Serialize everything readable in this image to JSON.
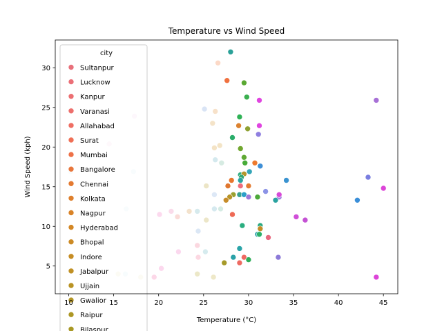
{
  "chart_data": {
    "type": "scatter",
    "title": "Temperature vs Wind Speed",
    "xlabel": "Temperature (°C)",
    "ylabel": "Wind Speed (kph)",
    "xlim": [
      8.5,
      46.6
    ],
    "ylim": [
      1.5,
      33.5
    ],
    "xticks": [
      10,
      15,
      20,
      25,
      30,
      35,
      40,
      45
    ],
    "yticks": [
      5,
      10,
      15,
      20,
      25,
      30
    ],
    "grid": false,
    "legend": {
      "title": "city",
      "placement": "upper-left",
      "entries": [
        {
          "name": "Sultanpur",
          "color": "#e8707b"
        },
        {
          "name": "Lucknow",
          "color": "#eb6f77"
        },
        {
          "name": "Kanpur",
          "color": "#ec6f72"
        },
        {
          "name": "Varanasi",
          "color": "#ed6f6c"
        },
        {
          "name": "Allahabad",
          "color": "#ef6e63"
        },
        {
          "name": "Surat",
          "color": "#f06f55"
        },
        {
          "name": "Mumbai",
          "color": "#ee7147"
        },
        {
          "name": "Bangalore",
          "color": "#e8763b"
        },
        {
          "name": "Chennai",
          "color": "#e47a31"
        },
        {
          "name": "Kolkata",
          "color": "#de7f2c"
        },
        {
          "name": "Nagpur",
          "color": "#d98327"
        },
        {
          "name": "Hyderabad",
          "color": "#d38725"
        },
        {
          "name": "Bhopal",
          "color": "#cc8a24"
        },
        {
          "name": "Indore",
          "color": "#c68d24"
        },
        {
          "name": "Jabalpur",
          "color": "#c09024"
        },
        {
          "name": "Ujjain",
          "color": "#b99324"
        },
        {
          "name": "Gwalior",
          "color": "#b39524"
        },
        {
          "name": "Raipur",
          "color": "#ad9724"
        },
        {
          "name": "Bilaspur",
          "color": "#a89824"
        }
      ]
    },
    "points": [
      {
        "x": 28.0,
        "y": 32.0,
        "color": "#2aa198"
      },
      {
        "x": 26.6,
        "y": 30.6,
        "color": "#fcd9c7"
      },
      {
        "x": 27.6,
        "y": 28.4,
        "color": "#f0713f"
      },
      {
        "x": 29.5,
        "y": 28.1,
        "color": "#5aa832"
      },
      {
        "x": 29.8,
        "y": 26.3,
        "color": "#3aaf4f"
      },
      {
        "x": 31.2,
        "y": 25.9,
        "color": "#e045e0"
      },
      {
        "x": 44.2,
        "y": 25.9,
        "color": "#a770d6"
      },
      {
        "x": 25.1,
        "y": 24.8,
        "color": "#d9e4f5"
      },
      {
        "x": 26.3,
        "y": 24.5,
        "color": "#f7e1c9"
      },
      {
        "x": 17.3,
        "y": 23.9,
        "color": "#f6d8ef"
      },
      {
        "x": 29.0,
        "y": 23.8,
        "color": "#2fb256"
      },
      {
        "x": 26.0,
        "y": 23.0,
        "color": "#f4e3c8"
      },
      {
        "x": 28.9,
        "y": 22.7,
        "color": "#dc8230"
      },
      {
        "x": 31.2,
        "y": 22.7,
        "color": "#e045e0"
      },
      {
        "x": 29.9,
        "y": 22.3,
        "color": "#8ea132"
      },
      {
        "x": 31.1,
        "y": 21.6,
        "color": "#8f7fe0"
      },
      {
        "x": 28.2,
        "y": 21.2,
        "color": "#2aad6a"
      },
      {
        "x": 14.5,
        "y": 20.4,
        "color": "#f8d9ea"
      },
      {
        "x": 26.8,
        "y": 20.2,
        "color": "#f3e4c6"
      },
      {
        "x": 26.2,
        "y": 19.9,
        "color": "#f4e3c5"
      },
      {
        "x": 29.1,
        "y": 19.8,
        "color": "#71a72f"
      },
      {
        "x": 12.3,
        "y": 18.7,
        "color": "#d8ecf1"
      },
      {
        "x": 29.5,
        "y": 18.7,
        "color": "#60a935"
      },
      {
        "x": 26.3,
        "y": 18.4,
        "color": "#d4e9ee"
      },
      {
        "x": 27.0,
        "y": 18.0,
        "color": "#d6ebe2"
      },
      {
        "x": 29.6,
        "y": 18.0,
        "color": "#47ab38"
      },
      {
        "x": 30.7,
        "y": 18.0,
        "color": "#ee7a2d"
      },
      {
        "x": 31.3,
        "y": 17.6,
        "color": "#3f8fd6"
      },
      {
        "x": 10.2,
        "y": 16.9,
        "color": "#d9edf3"
      },
      {
        "x": 17.2,
        "y": 16.9,
        "color": "#dbeef4"
      },
      {
        "x": 30.1,
        "y": 16.9,
        "color": "#34a5b8"
      },
      {
        "x": 29.1,
        "y": 16.5,
        "color": "#2fae82"
      },
      {
        "x": 29.5,
        "y": 16.6,
        "color": "#b3962c"
      },
      {
        "x": 29.2,
        "y": 16.2,
        "color": "#33a876"
      },
      {
        "x": 43.3,
        "y": 16.2,
        "color": "#7a7ee0"
      },
      {
        "x": 28.1,
        "y": 15.8,
        "color": "#e8762e"
      },
      {
        "x": 34.2,
        "y": 15.8,
        "color": "#3a93d0"
      },
      {
        "x": 29.1,
        "y": 15.8,
        "color": "#2aa3a0"
      },
      {
        "x": 25.3,
        "y": 15.1,
        "color": "#ece5c6"
      },
      {
        "x": 27.7,
        "y": 15.1,
        "color": "#e0772f"
      },
      {
        "x": 29.1,
        "y": 15.1,
        "color": "#ee6d7d"
      },
      {
        "x": 30.0,
        "y": 15.1,
        "color": "#e47c33"
      },
      {
        "x": 45.0,
        "y": 14.8,
        "color": "#dc45d8"
      },
      {
        "x": 31.9,
        "y": 14.4,
        "color": "#8c93e6"
      },
      {
        "x": 28.3,
        "y": 14.0,
        "color": "#9aa02e"
      },
      {
        "x": 29.0,
        "y": 14.0,
        "color": "#3aa18e"
      },
      {
        "x": 29.5,
        "y": 14.0,
        "color": "#2b9fc8"
      },
      {
        "x": 26.2,
        "y": 14.0,
        "color": "#dde8f6"
      },
      {
        "x": 27.9,
        "y": 13.7,
        "color": "#b79429"
      },
      {
        "x": 30.0,
        "y": 13.7,
        "color": "#9e78d8"
      },
      {
        "x": 31.0,
        "y": 13.7,
        "color": "#4da93a"
      },
      {
        "x": 33.4,
        "y": 13.7,
        "color": "#a07ee0"
      },
      {
        "x": 33.4,
        "y": 14.0,
        "color": "#d74ad8"
      },
      {
        "x": 27.5,
        "y": 13.3,
        "color": "#c68c29"
      },
      {
        "x": 33.0,
        "y": 13.3,
        "color": "#2aa3a0"
      },
      {
        "x": 42.1,
        "y": 13.3,
        "color": "#3a8ed8"
      },
      {
        "x": 16.4,
        "y": 12.2,
        "color": "#dcedf2"
      },
      {
        "x": 26.2,
        "y": 12.2,
        "color": "#d5e9ef"
      },
      {
        "x": 26.9,
        "y": 12.2,
        "color": "#d4ebe3"
      },
      {
        "x": 21.4,
        "y": 11.9,
        "color": "#fadbea"
      },
      {
        "x": 23.4,
        "y": 11.9,
        "color": "#f3e2cc"
      },
      {
        "x": 24.3,
        "y": 11.9,
        "color": "#d6eaed"
      },
      {
        "x": 20.1,
        "y": 11.5,
        "color": "#fcd9ee"
      },
      {
        "x": 28.2,
        "y": 11.5,
        "color": "#ee6a55"
      },
      {
        "x": 22.1,
        "y": 11.2,
        "color": "#fadbd7"
      },
      {
        "x": 35.3,
        "y": 11.2,
        "color": "#d04fd8"
      },
      {
        "x": 25.3,
        "y": 10.8,
        "color": "#ece6c8"
      },
      {
        "x": 36.3,
        "y": 10.8,
        "color": "#c452d4"
      },
      {
        "x": 29.3,
        "y": 10.1,
        "color": "#2aae80"
      },
      {
        "x": 31.3,
        "y": 10.1,
        "color": "#2aa880"
      },
      {
        "x": 31.3,
        "y": 9.7,
        "color": "#c38d28"
      },
      {
        "x": 24.4,
        "y": 9.4,
        "color": "#dbe7f5"
      },
      {
        "x": 31.0,
        "y": 9.0,
        "color": "#2aa2a8"
      },
      {
        "x": 31.2,
        "y": 9.0,
        "color": "#2ab06a"
      },
      {
        "x": 32.2,
        "y": 8.6,
        "color": "#e9697f"
      },
      {
        "x": 24.3,
        "y": 7.6,
        "color": "#fbd8e0"
      },
      {
        "x": 29.0,
        "y": 7.2,
        "color": "#2aa4a8"
      },
      {
        "x": 22.2,
        "y": 6.8,
        "color": "#fbd8ee"
      },
      {
        "x": 25.2,
        "y": 6.8,
        "color": "#d6ebee"
      },
      {
        "x": 24.4,
        "y": 6.1,
        "color": "#fcd8e2"
      },
      {
        "x": 28.3,
        "y": 6.1,
        "color": "#2aa2a8"
      },
      {
        "x": 29.5,
        "y": 6.1,
        "color": "#ee6a62"
      },
      {
        "x": 33.3,
        "y": 6.1,
        "color": "#8c7ad8"
      },
      {
        "x": 30.0,
        "y": 5.8,
        "color": "#2fae5a"
      },
      {
        "x": 29.0,
        "y": 5.4,
        "color": "#ee6a62"
      },
      {
        "x": 27.3,
        "y": 5.4,
        "color": "#a69a2a"
      },
      {
        "x": 20.3,
        "y": 4.7,
        "color": "#fcd8ee"
      },
      {
        "x": 15.5,
        "y": 4.0,
        "color": "#efe8c8"
      },
      {
        "x": 16.3,
        "y": 4.0,
        "color": "#d8edf2"
      },
      {
        "x": 24.3,
        "y": 4.0,
        "color": "#ece8c8"
      },
      {
        "x": 18.0,
        "y": 3.6,
        "color": "#eee8c8"
      },
      {
        "x": 19.5,
        "y": 3.6,
        "color": "#fcd8e8"
      },
      {
        "x": 26.1,
        "y": 3.6,
        "color": "#eee8c8"
      },
      {
        "x": 44.2,
        "y": 3.6,
        "color": "#dc45d8"
      }
    ]
  }
}
